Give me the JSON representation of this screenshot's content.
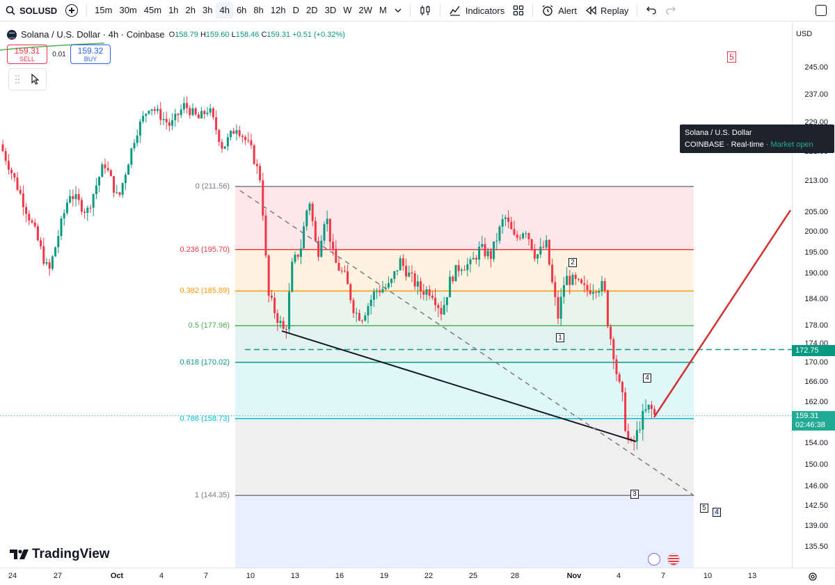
{
  "toolbar": {
    "symbol": "SOLUSD",
    "intervals": [
      "15m",
      "30m",
      "45m",
      "1h",
      "2h",
      "3h",
      "4h",
      "6h",
      "8h",
      "12h",
      "D",
      "2D",
      "3D",
      "W",
      "2W",
      "M"
    ],
    "active_interval": "4h",
    "indicators_label": "Indicators",
    "alert_label": "Alert",
    "replay_label": "Replay"
  },
  "legend": {
    "title": "Solana / U.S. Dollar · 4h · Coinbase",
    "o_label": "O",
    "o": "158.79",
    "h_label": "H",
    "h": "159.60",
    "l_label": "L",
    "l": "158.46",
    "c_label": "C",
    "c": "159.31",
    "change": "+0.51 (+0.32%)"
  },
  "trade": {
    "sell_price": "159.31",
    "sell_label": "SELL",
    "spread": "0.01",
    "buy_price": "159.32",
    "buy_label": "BUY"
  },
  "tooltip": {
    "line1": "Solana / U.S. Dollar",
    "exchange": "COINBASE",
    "feed": "Real-time",
    "status": "Market open"
  },
  "price_axis": {
    "currency": "USD",
    "labels": [
      "245.00",
      "237.00",
      "229.00",
      "221.00",
      "213.00",
      "205.00",
      "200.00",
      "195.00",
      "190.00",
      "184.00",
      "178.00",
      "174.00",
      "170.00",
      "166.00",
      "162.00",
      "158.00",
      "154.00",
      "150.00",
      "146.00",
      "142.50",
      "139.00",
      "135.50"
    ],
    "marked_price": "172.75",
    "current_price": "159.31",
    "countdown": "02:46:38"
  },
  "time_axis": {
    "labels": [
      "24",
      "27",
      "Oct",
      "4",
      "7",
      "10",
      "13",
      "16",
      "19",
      "22",
      "25",
      "28",
      "Nov",
      "4",
      "7",
      "10",
      "13"
    ]
  },
  "fib_levels": [
    {
      "label": "0 (211.56)",
      "price": 211.56,
      "color": "#787b86"
    },
    {
      "label": "0.236 (195.70)",
      "price": 195.7,
      "color": "#f23645"
    },
    {
      "label": "0.382 (185.89)",
      "price": 185.89,
      "color": "#ff9800"
    },
    {
      "label": "0.5 (177.96)",
      "price": 177.96,
      "color": "#4caf50"
    },
    {
      "label": "0.618 (170.02)",
      "price": 170.02,
      "color": "#089981"
    },
    {
      "label": "0.786 (158.73)",
      "price": 158.73,
      "color": "#00bcd4"
    },
    {
      "label": "1 (144.35)",
      "price": 144.35,
      "color": "#787b86"
    }
  ],
  "wave_labels": [
    "1",
    "2",
    "3",
    "4",
    "5",
    "4"
  ],
  "wave_top_label": "5",
  "branding": "TradingView",
  "colors": {
    "up": "#089981",
    "down": "#f23645",
    "accent": "#2962ff"
  }
}
